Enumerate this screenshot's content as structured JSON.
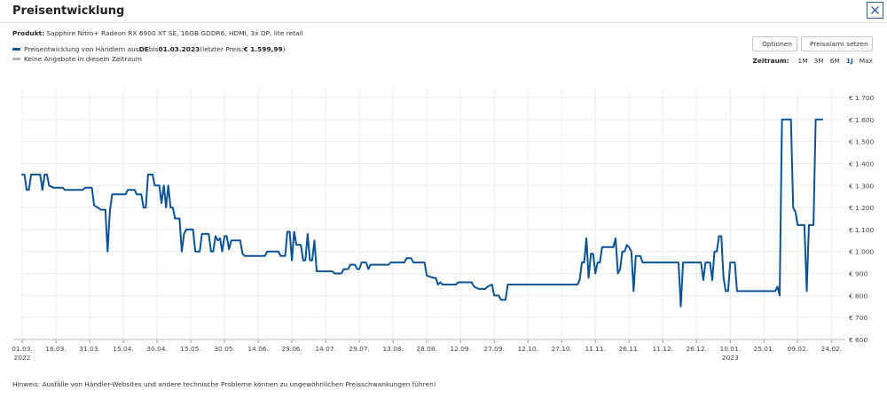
{
  "dialog": {
    "title": "Preisentwicklung",
    "close_icon": "close-icon"
  },
  "product": {
    "label": "Produkt:",
    "name": "Sapphire Nitro+ Radeon RX 6900 XT SE, 16GB GDDR6, HDMI, 3x DP, lite retail"
  },
  "legend": {
    "series1": {
      "text_a": "Preisentwicklung von Händlern aus ",
      "country": "DE",
      "text_b": " bis ",
      "date": "01.03.2023",
      "text_c": " (letzter Preis: ",
      "price": "€ 1.599,99",
      "text_d": ")",
      "color": "#0b5394"
    },
    "series2": {
      "text": "Keine Angebote in diesem Zeitraum",
      "color": "#b3b3b3"
    }
  },
  "toolbar": {
    "options_label": "Optionen",
    "alarm_label": "Preisalarm setzen"
  },
  "range": {
    "label": "Zeitraum:",
    "options": [
      "1M",
      "3M",
      "6M",
      "1J",
      "Max"
    ],
    "active": "1J"
  },
  "hint": "Hinweis: Ausfälle von Händler-Websites und andere technische Probleme können zu ungewöhnlichen Preisschwankungen führen!",
  "chart_data": {
    "type": "line",
    "title": "Preisentwicklung",
    "xlabel": "",
    "ylabel": "",
    "ylim": [
      600,
      1700
    ],
    "y_ticks": [
      600,
      700,
      800,
      900,
      1000,
      1100,
      1200,
      1300,
      1400,
      1500,
      1600,
      1700
    ],
    "y_tick_labels": [
      "€ 600",
      "€ 700",
      "€ 800",
      "€ 900",
      "€ 1.000",
      "€ 1.100",
      "€ 1.200",
      "€ 1.300",
      "€ 1.400",
      "€ 1.500",
      "€ 1.600",
      "€ 1.700"
    ],
    "x_range_days": [
      0,
      365
    ],
    "x_ticks": [
      {
        "day": 0,
        "label": "01.03.",
        "year": "2022"
      },
      {
        "day": 15,
        "label": "16.03."
      },
      {
        "day": 30,
        "label": "31.03."
      },
      {
        "day": 45,
        "label": "15.04."
      },
      {
        "day": 60,
        "label": "30.04."
      },
      {
        "day": 75,
        "label": "15.05."
      },
      {
        "day": 90,
        "label": "30.05."
      },
      {
        "day": 105,
        "label": "14.06."
      },
      {
        "day": 120,
        "label": "29.06."
      },
      {
        "day": 135,
        "label": "14.07."
      },
      {
        "day": 150,
        "label": "29.07."
      },
      {
        "day": 165,
        "label": "13.08."
      },
      {
        "day": 180,
        "label": "28.08."
      },
      {
        "day": 195,
        "label": "12.09."
      },
      {
        "day": 210,
        "label": "27.09."
      },
      {
        "day": 225,
        "label": "12.10."
      },
      {
        "day": 240,
        "label": "27.10."
      },
      {
        "day": 255,
        "label": "11.11."
      },
      {
        "day": 270,
        "label": "26.11."
      },
      {
        "day": 285,
        "label": "11.12."
      },
      {
        "day": 300,
        "label": "26.12."
      },
      {
        "day": 315,
        "label": "10.01.",
        "year": "2023"
      },
      {
        "day": 330,
        "label": "25.01."
      },
      {
        "day": 345,
        "label": "09.02."
      },
      {
        "day": 360,
        "label": "24.02."
      }
    ],
    "grid": true,
    "series": [
      {
        "name": "Preisentwicklung von Händlern aus DE",
        "color": "#0b5394",
        "points": [
          [
            0,
            1350
          ],
          [
            1,
            1350
          ],
          [
            2,
            1280
          ],
          [
            3,
            1280
          ],
          [
            4,
            1350
          ],
          [
            8,
            1350
          ],
          [
            9,
            1280
          ],
          [
            10,
            1350
          ],
          [
            11,
            1350
          ],
          [
            12,
            1300
          ],
          [
            14,
            1290
          ],
          [
            18,
            1290
          ],
          [
            19,
            1280
          ],
          [
            27,
            1280
          ],
          [
            28,
            1290
          ],
          [
            31,
            1290
          ],
          [
            32,
            1210
          ],
          [
            35,
            1190
          ],
          [
            37,
            1190
          ],
          [
            38,
            1000
          ],
          [
            39,
            1180
          ],
          [
            40,
            1260
          ],
          [
            46,
            1260
          ],
          [
            47,
            1280
          ],
          [
            50,
            1280
          ],
          [
            51,
            1260
          ],
          [
            53,
            1260
          ],
          [
            54,
            1200
          ],
          [
            55,
            1200
          ],
          [
            56,
            1350
          ],
          [
            58,
            1350
          ],
          [
            59,
            1300
          ],
          [
            61,
            1300
          ],
          [
            62,
            1220
          ],
          [
            63,
            1300
          ],
          [
            64,
            1200
          ],
          [
            65,
            1300
          ],
          [
            66,
            1200
          ],
          [
            67,
            1200
          ],
          [
            68,
            1150
          ],
          [
            70,
            1150
          ],
          [
            71,
            1000
          ],
          [
            72,
            1080
          ],
          [
            73,
            1100
          ],
          [
            76,
            1100
          ],
          [
            77,
            1000
          ],
          [
            79,
            1000
          ],
          [
            80,
            1080
          ],
          [
            83,
            1080
          ],
          [
            84,
            1000
          ],
          [
            85,
            1000
          ],
          [
            86,
            1070
          ],
          [
            87,
            1050
          ],
          [
            88,
            1060
          ],
          [
            89,
            1000
          ],
          [
            90,
            1070
          ],
          [
            91,
            1070
          ],
          [
            92,
            1010
          ],
          [
            93,
            1050
          ],
          [
            97,
            1050
          ],
          [
            98,
            990
          ],
          [
            99,
            980
          ],
          [
            108,
            980
          ],
          [
            109,
            1000
          ],
          [
            114,
            1000
          ],
          [
            115,
            980
          ],
          [
            117,
            980
          ],
          [
            118,
            1090
          ],
          [
            119,
            1090
          ],
          [
            120,
            960
          ],
          [
            121,
            1090
          ],
          [
            122,
            1030
          ],
          [
            124,
            1030
          ],
          [
            125,
            960
          ],
          [
            126,
            960
          ],
          [
            127,
            1080
          ],
          [
            128,
            960
          ],
          [
            129,
            960
          ],
          [
            130,
            1050
          ],
          [
            131,
            910
          ],
          [
            138,
            910
          ],
          [
            139,
            900
          ],
          [
            142,
            900
          ],
          [
            143,
            920
          ],
          [
            145,
            920
          ],
          [
            146,
            940
          ],
          [
            148,
            940
          ],
          [
            149,
            920
          ],
          [
            150,
            920
          ],
          [
            151,
            950
          ],
          [
            153,
            950
          ],
          [
            154,
            920
          ],
          [
            155,
            940
          ],
          [
            163,
            940
          ],
          [
            164,
            950
          ],
          [
            170,
            950
          ],
          [
            171,
            970
          ],
          [
            173,
            970
          ],
          [
            174,
            950
          ],
          [
            179,
            950
          ],
          [
            180,
            890
          ],
          [
            183,
            880
          ],
          [
            184,
            880
          ],
          [
            185,
            850
          ],
          [
            186,
            860
          ],
          [
            187,
            850
          ],
          [
            193,
            850
          ],
          [
            194,
            860
          ],
          [
            200,
            860
          ],
          [
            201,
            840
          ],
          [
            203,
            830
          ],
          [
            206,
            830
          ],
          [
            207,
            840
          ],
          [
            209,
            850
          ],
          [
            210,
            800
          ],
          [
            212,
            800
          ],
          [
            213,
            780
          ],
          [
            215,
            780
          ],
          [
            216,
            850
          ],
          [
            247,
            850
          ],
          [
            248,
            870
          ],
          [
            249,
            950
          ],
          [
            250,
            950
          ],
          [
            251,
            1060
          ],
          [
            252,
            880
          ],
          [
            253,
            990
          ],
          [
            254,
            990
          ],
          [
            255,
            900
          ],
          [
            256,
            950
          ],
          [
            257,
            950
          ],
          [
            258,
            1020
          ],
          [
            263,
            1020
          ],
          [
            264,
            1060
          ],
          [
            265,
            900
          ],
          [
            266,
            920
          ],
          [
            267,
            1000
          ],
          [
            268,
            1000
          ],
          [
            269,
            1030
          ],
          [
            270,
            1020
          ],
          [
            271,
            1000
          ],
          [
            272,
            820
          ],
          [
            273,
            980
          ],
          [
            275,
            980
          ],
          [
            276,
            950
          ],
          [
            292,
            950
          ],
          [
            293,
            750
          ],
          [
            294,
            950
          ],
          [
            302,
            950
          ],
          [
            303,
            870
          ],
          [
            304,
            950
          ],
          [
            306,
            950
          ],
          [
            307,
            870
          ],
          [
            308,
            1000
          ],
          [
            309,
            1000
          ],
          [
            310,
            1070
          ],
          [
            311,
            1070
          ],
          [
            312,
            880
          ],
          [
            313,
            820
          ],
          [
            314,
            820
          ],
          [
            315,
            950
          ],
          [
            317,
            950
          ],
          [
            318,
            820
          ],
          [
            335,
            820
          ],
          [
            336,
            840
          ],
          [
            337,
            800
          ],
          [
            338,
            1600
          ],
          [
            342,
            1600
          ],
          [
            343,
            1200
          ],
          [
            344,
            1180
          ],
          [
            345,
            1120
          ],
          [
            348,
            1120
          ],
          [
            349,
            820
          ],
          [
            350,
            1120
          ],
          [
            352,
            1120
          ],
          [
            353,
            1600
          ],
          [
            356,
            1600
          ]
        ]
      }
    ]
  }
}
